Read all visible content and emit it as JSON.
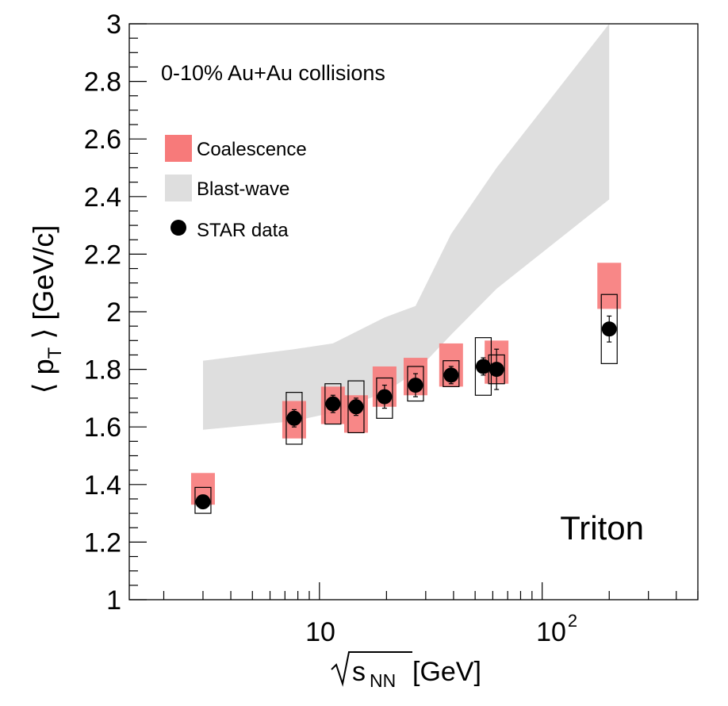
{
  "chart_data": {
    "type": "scatter",
    "xscale": "log",
    "xlim": [
      1.4,
      500
    ],
    "ylim": [
      1,
      3
    ],
    "annotation": "0-10% Au+Au collisions",
    "particle_label": "Triton",
    "xlabel": {
      "root": "s",
      "sub": "NN",
      "unit": "[GeV]"
    },
    "ylabel": {
      "left": "⟨ p",
      "sub": "T",
      "right": " ⟩ [GeV/c]"
    },
    "y_ticks": [
      {
        "v": 1,
        "label": "1"
      },
      {
        "v": 1.2,
        "label": "1.2"
      },
      {
        "v": 1.4,
        "label": "1.4"
      },
      {
        "v": 1.6,
        "label": "1.6"
      },
      {
        "v": 1.8,
        "label": "1.8"
      },
      {
        "v": 2,
        "label": "2"
      },
      {
        "v": 2.2,
        "label": "2.2"
      },
      {
        "v": 2.4,
        "label": "2.4"
      },
      {
        "v": 2.6,
        "label": "2.6"
      },
      {
        "v": 2.8,
        "label": "2.8"
      },
      {
        "v": 3,
        "label": "3"
      }
    ],
    "x_tick_labels": {
      "ten": "10",
      "hundred_base": "10",
      "hundred_exp": "2"
    },
    "legend": [
      {
        "name": "Coalescence",
        "marker": "box",
        "color": "#f77a7a"
      },
      {
        "name": "Blast-wave",
        "marker": "box",
        "color": "#dedede"
      },
      {
        "name": "STAR data",
        "marker": "circle",
        "color": "#000000"
      }
    ],
    "colors": {
      "coalescence": "#f77a7a",
      "blastwave": "#dedede",
      "data": "#000000"
    },
    "blast_wave": {
      "x": [
        3.0,
        7.7,
        11.5,
        19.6,
        27,
        39,
        62.4,
        200
      ],
      "upper": [
        1.83,
        1.87,
        1.89,
        1.98,
        2.02,
        2.27,
        2.5,
        3.0
      ],
      "lower": [
        1.59,
        1.62,
        1.65,
        1.72,
        1.79,
        1.92,
        2.08,
        2.39
      ]
    },
    "coalescence": [
      {
        "x": 3.0,
        "low": 1.33,
        "high": 1.44
      },
      {
        "x": 7.7,
        "low": 1.56,
        "high": 1.69
      },
      {
        "x": 11.5,
        "low": 1.61,
        "high": 1.74
      },
      {
        "x": 14.6,
        "low": 1.58,
        "high": 1.71
      },
      {
        "x": 19.6,
        "low": 1.67,
        "high": 1.81
      },
      {
        "x": 27,
        "low": 1.71,
        "high": 1.84
      },
      {
        "x": 39,
        "low": 1.74,
        "high": 1.89
      },
      {
        "x": 62.4,
        "low": 1.75,
        "high": 1.9
      },
      {
        "x": 200,
        "low": 2.01,
        "high": 2.17
      }
    ],
    "star_data": [
      {
        "x": 3.0,
        "y": 1.34,
        "stat": 0.01,
        "sys_low": 1.3,
        "sys_high": 1.39
      },
      {
        "x": 7.7,
        "y": 1.63,
        "stat": 0.03,
        "sys_low": 1.54,
        "sys_high": 1.72
      },
      {
        "x": 11.5,
        "y": 1.68,
        "stat": 0.03,
        "sys_low": 1.61,
        "sys_high": 1.75
      },
      {
        "x": 14.6,
        "y": 1.67,
        "stat": 0.03,
        "sys_low": 1.58,
        "sys_high": 1.76
      },
      {
        "x": 19.6,
        "y": 1.705,
        "stat": 0.04,
        "sys_low": 1.63,
        "sys_high": 1.77
      },
      {
        "x": 27,
        "y": 1.745,
        "stat": 0.04,
        "sys_low": 1.69,
        "sys_high": 1.81
      },
      {
        "x": 39,
        "y": 1.78,
        "stat": 0.03,
        "sys_low": 1.74,
        "sys_high": 1.83
      },
      {
        "x": 54.4,
        "y": 1.81,
        "stat": 0.03,
        "sys_low": 1.71,
        "sys_high": 1.91
      },
      {
        "x": 62.4,
        "y": 1.8,
        "stat": 0.07,
        "sys_low": 1.75,
        "sys_high": 1.85
      },
      {
        "x": 200,
        "y": 1.94,
        "stat": 0.045,
        "sys_low": 1.82,
        "sys_high": 2.06
      }
    ]
  }
}
